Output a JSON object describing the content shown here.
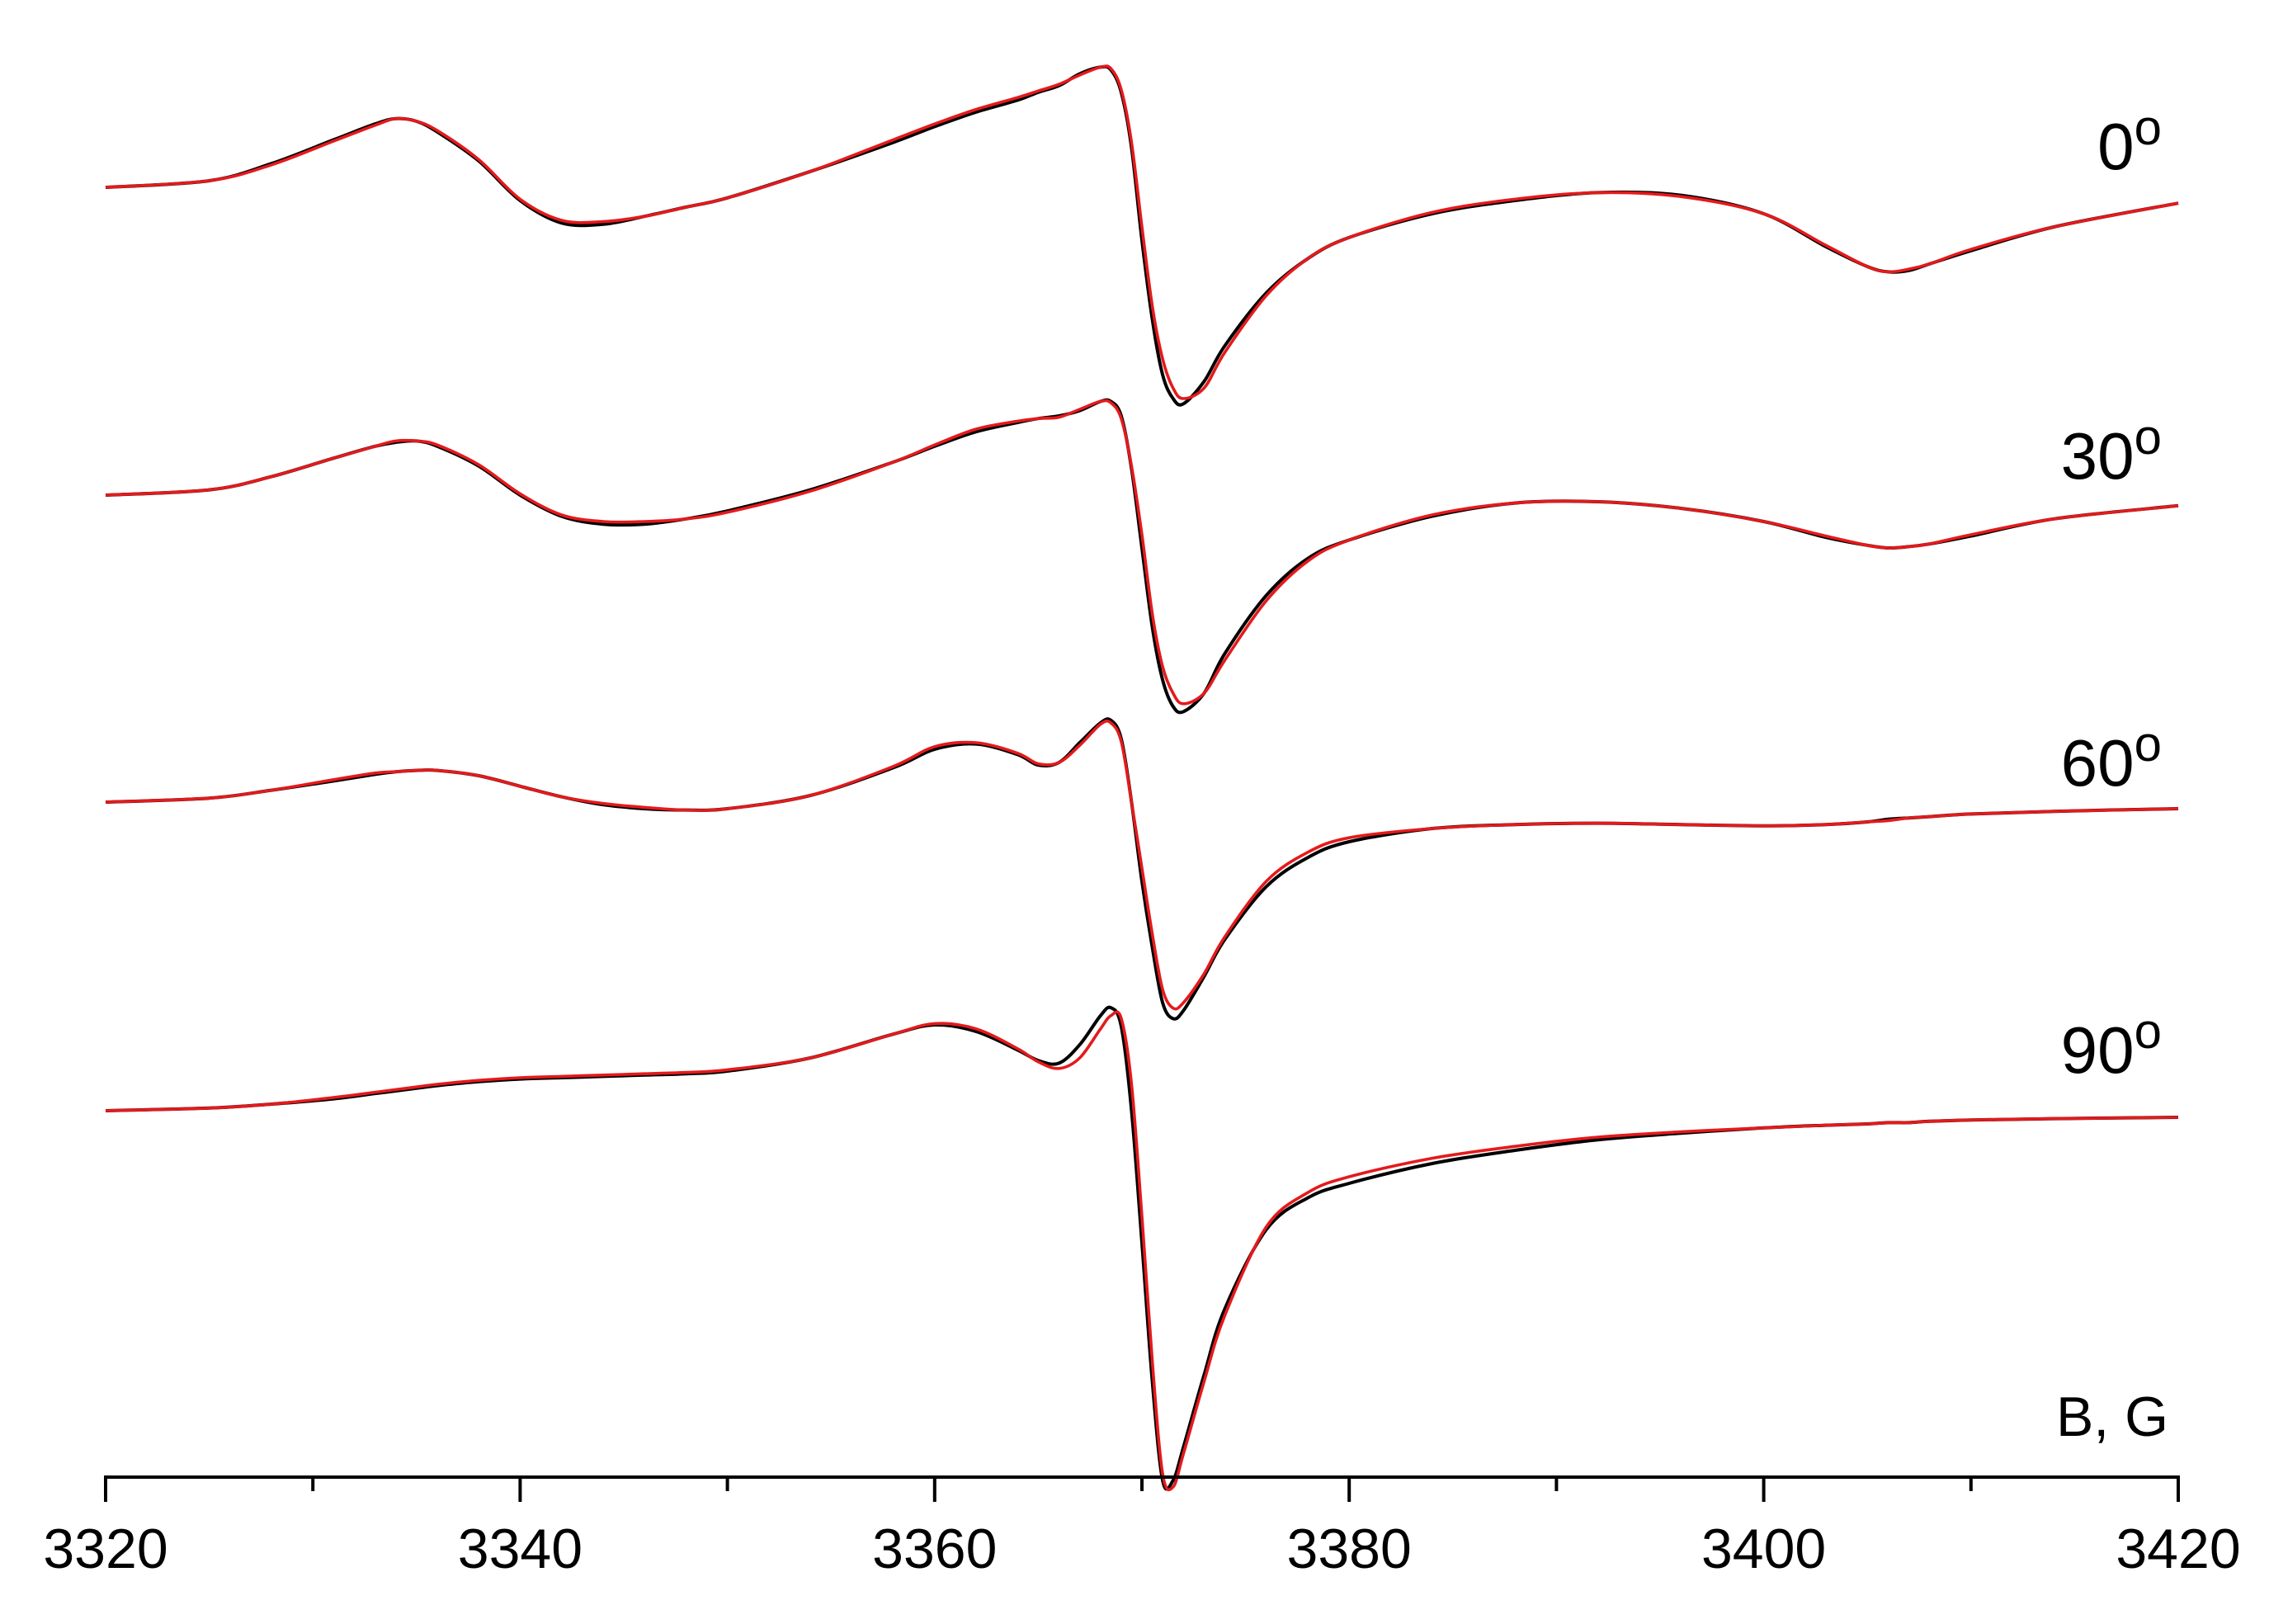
{
  "chart_data": {
    "type": "line",
    "title": "",
    "xlabel": "B, G",
    "ylabel": "",
    "xlim": [
      3320,
      3420
    ],
    "xticks": [
      3320,
      3340,
      3360,
      3380,
      3400,
      3420
    ],
    "xtick_labels": [
      "3320",
      "3340",
      "3360",
      "3380",
      "3400",
      "3420"
    ],
    "minor_xticks": [
      3330,
      3350,
      3370,
      3390,
      3410
    ],
    "grid": false,
    "legend": "none",
    "line_colors": {
      "experimental": "#000000",
      "simulated": "#e41a1c"
    },
    "x": [
      3320,
      3325,
      3328,
      3331,
      3333,
      3334,
      3335,
      3336,
      3338,
      3340,
      3342,
      3344,
      3346,
      3348,
      3350,
      3354,
      3358,
      3360,
      3362,
      3364,
      3365,
      3366,
      3367,
      3368,
      3368.5,
      3369,
      3369.5,
      3370,
      3370.5,
      3371,
      3371.5,
      3372,
      3373,
      3374,
      3376,
      3378,
      3380,
      3384,
      3388,
      3392,
      3396,
      3400,
      3403,
      3405,
      3406,
      3407,
      3408,
      3410,
      3414,
      3420
    ],
    "spectra": [
      {
        "label": "0",
        "sup": "o",
        "experimental": [
          0,
          0.05,
          0.18,
          0.36,
          0.48,
          0.52,
          0.5,
          0.42,
          0.2,
          -0.1,
          -0.27,
          -0.28,
          -0.22,
          -0.15,
          -0.08,
          0.12,
          0.34,
          0.46,
          0.57,
          0.66,
          0.72,
          0.77,
          0.86,
          0.91,
          0.89,
          0.72,
          0.3,
          -0.4,
          -1.0,
          -1.42,
          -1.6,
          -1.64,
          -1.47,
          -1.2,
          -0.8,
          -0.54,
          -0.38,
          -0.2,
          -0.1,
          -0.04,
          -0.06,
          -0.2,
          -0.45,
          -0.6,
          -0.64,
          -0.63,
          -0.58,
          -0.48,
          -0.3,
          -0.12
        ],
        "simulated": [
          0,
          0.05,
          0.17,
          0.35,
          0.47,
          0.52,
          0.5,
          0.43,
          0.21,
          -0.09,
          -0.25,
          -0.26,
          -0.22,
          -0.15,
          -0.08,
          0.12,
          0.36,
          0.48,
          0.59,
          0.68,
          0.73,
          0.78,
          0.85,
          0.91,
          0.9,
          0.74,
          0.34,
          -0.3,
          -0.9,
          -1.3,
          -1.52,
          -1.6,
          -1.52,
          -1.25,
          -0.82,
          -0.54,
          -0.38,
          -0.19,
          -0.09,
          -0.04,
          -0.07,
          -0.2,
          -0.44,
          -0.6,
          -0.64,
          -0.62,
          -0.58,
          -0.47,
          -0.3,
          -0.12
        ]
      },
      {
        "label": "30",
        "sup": "o",
        "experimental": [
          0,
          0.04,
          0.14,
          0.28,
          0.37,
          0.4,
          0.41,
          0.37,
          0.22,
          0,
          -0.16,
          -0.22,
          -0.22,
          -0.18,
          -0.12,
          0.04,
          0.25,
          0.37,
          0.48,
          0.55,
          0.58,
          0.6,
          0.64,
          0.71,
          0.71,
          0.6,
          0.2,
          -0.4,
          -1.0,
          -1.4,
          -1.6,
          -1.64,
          -1.5,
          -1.2,
          -0.76,
          -0.48,
          -0.34,
          -0.16,
          -0.06,
          -0.05,
          -0.1,
          -0.2,
          -0.32,
          -0.38,
          -0.4,
          -0.39,
          -0.37,
          -0.31,
          -0.18,
          -0.08
        ],
        "simulated": [
          0,
          0.04,
          0.14,
          0.28,
          0.37,
          0.41,
          0.41,
          0.38,
          0.23,
          0.01,
          -0.15,
          -0.2,
          -0.2,
          -0.18,
          -0.13,
          0.03,
          0.25,
          0.38,
          0.5,
          0.56,
          0.58,
          0.59,
          0.65,
          0.71,
          0.7,
          0.58,
          0.22,
          -0.3,
          -0.9,
          -1.3,
          -1.5,
          -1.58,
          -1.5,
          -1.25,
          -0.8,
          -0.5,
          -0.34,
          -0.15,
          -0.06,
          -0.05,
          -0.1,
          -0.2,
          -0.31,
          -0.38,
          -0.4,
          -0.39,
          -0.37,
          -0.3,
          -0.18,
          -0.08
        ]
      },
      {
        "label": "60",
        "sup": "o",
        "experimental": [
          0,
          0.03,
          0.09,
          0.16,
          0.21,
          0.23,
          0.24,
          0.24,
          0.2,
          0.12,
          0.04,
          -0.02,
          -0.05,
          -0.06,
          -0.05,
          0.05,
          0.26,
          0.4,
          0.44,
          0.36,
          0.28,
          0.3,
          0.45,
          0.6,
          0.62,
          0.48,
          0.0,
          -0.6,
          -1.1,
          -1.52,
          -1.64,
          -1.58,
          -1.32,
          -1.04,
          -0.64,
          -0.42,
          -0.3,
          -0.2,
          -0.17,
          -0.16,
          -0.17,
          -0.18,
          -0.17,
          -0.15,
          -0.13,
          -0.12,
          -0.11,
          -0.09,
          -0.07,
          -0.05
        ],
        "simulated": [
          0,
          0.03,
          0.09,
          0.17,
          0.22,
          0.23,
          0.24,
          0.24,
          0.2,
          0.12,
          0.04,
          -0.01,
          -0.04,
          -0.06,
          -0.05,
          0.05,
          0.27,
          0.42,
          0.45,
          0.37,
          0.29,
          0.3,
          0.43,
          0.59,
          0.6,
          0.46,
          0.0,
          -0.5,
          -1.0,
          -1.42,
          -1.56,
          -1.52,
          -1.3,
          -1.02,
          -0.6,
          -0.38,
          -0.27,
          -0.2,
          -0.17,
          -0.16,
          -0.17,
          -0.18,
          -0.17,
          -0.15,
          -0.14,
          -0.12,
          -0.11,
          -0.09,
          -0.07,
          -0.05
        ]
      },
      {
        "label": "90",
        "sup": "o",
        "experimental": [
          0,
          0.02,
          0.05,
          0.09,
          0.13,
          0.15,
          0.17,
          0.19,
          0.22,
          0.24,
          0.25,
          0.26,
          0.27,
          0.28,
          0.3,
          0.4,
          0.58,
          0.65,
          0.6,
          0.46,
          0.38,
          0.36,
          0.5,
          0.72,
          0.78,
          0.64,
          0.0,
          -1.0,
          -2.05,
          -2.8,
          -2.8,
          -2.55,
          -2.0,
          -1.5,
          -0.9,
          -0.66,
          -0.55,
          -0.4,
          -0.3,
          -0.22,
          -0.17,
          -0.13,
          -0.11,
          -0.1,
          -0.09,
          -0.09,
          -0.08,
          -0.07,
          -0.06,
          -0.05
        ],
        "simulated": [
          0,
          0.02,
          0.05,
          0.1,
          0.14,
          0.16,
          0.18,
          0.2,
          0.23,
          0.25,
          0.26,
          0.27,
          0.28,
          0.29,
          0.31,
          0.4,
          0.58,
          0.66,
          0.62,
          0.47,
          0.37,
          0.32,
          0.4,
          0.62,
          0.72,
          0.7,
          0.2,
          -0.8,
          -1.9,
          -2.75,
          -2.85,
          -2.6,
          -2.05,
          -1.55,
          -0.88,
          -0.62,
          -0.5,
          -0.36,
          -0.27,
          -0.2,
          -0.16,
          -0.13,
          -0.11,
          -0.1,
          -0.09,
          -0.09,
          -0.08,
          -0.07,
          -0.06,
          -0.05
        ]
      }
    ]
  }
}
